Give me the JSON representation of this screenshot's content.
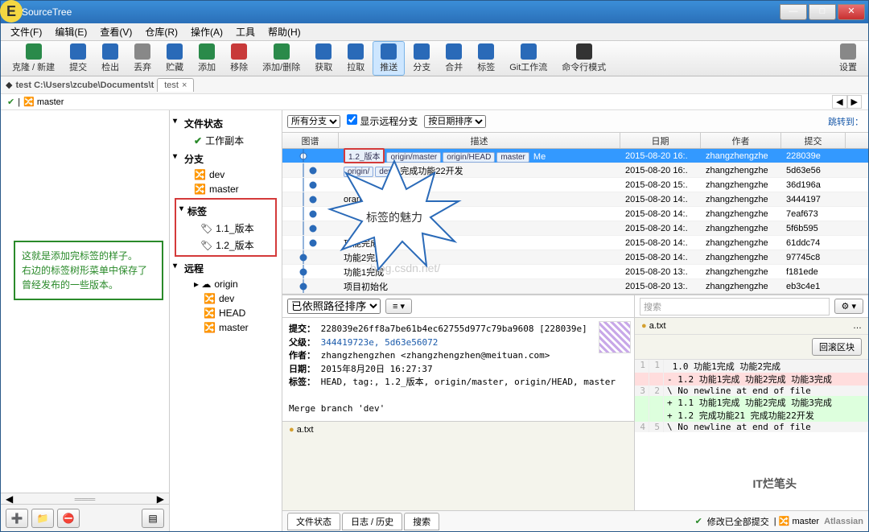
{
  "window": {
    "title": "SourceTree"
  },
  "menus": [
    "文件(F)",
    "编辑(E)",
    "查看(V)",
    "仓库(R)",
    "操作(A)",
    "工具",
    "帮助(H)"
  ],
  "toolbar": [
    {
      "label": "克隆 / 新建",
      "color": "#2a8a4a"
    },
    {
      "label": "提交",
      "color": "#2a6ab8"
    },
    {
      "label": "检出",
      "color": "#2a6ab8"
    },
    {
      "label": "丢弃",
      "color": "#888"
    },
    {
      "label": "贮藏",
      "color": "#2a6ab8"
    },
    {
      "label": "添加",
      "color": "#2a8a4a"
    },
    {
      "label": "移除",
      "color": "#c83a3a"
    },
    {
      "label": "添加/删除",
      "color": "#2a8a4a"
    },
    {
      "label": "获取",
      "color": "#2a6ab8"
    },
    {
      "label": "拉取",
      "color": "#2a6ab8"
    },
    {
      "label": "推送",
      "color": "#2a6ab8",
      "active": true
    },
    {
      "label": "分支",
      "color": "#2a6ab8"
    },
    {
      "label": "合并",
      "color": "#2a6ab8"
    },
    {
      "label": "标签",
      "color": "#2a6ab8"
    },
    {
      "label": "Git工作流",
      "color": "#2a6ab8"
    },
    {
      "label": "命令行模式",
      "color": "#333"
    }
  ],
  "settings_label": "设置",
  "path": "test  C:\\Users\\zcube\\Documents\\t",
  "tab": "test",
  "branch_indicator": "master",
  "annotation": "这就是添加完标签的样子。\n右边的标签树形菜单中保存了曾经发布的一些版本。",
  "burst_text": "标签的魅力",
  "sidebar": {
    "file_status": "文件状态",
    "working_copy": "工作副本",
    "branches": "分支",
    "branch_items": [
      "dev",
      "master"
    ],
    "tags": "标签",
    "tag_items": [
      "1.1_版本",
      "1.2_版本"
    ],
    "remotes": "远程",
    "remote_name": "origin",
    "remote_items": [
      "dev",
      "HEAD",
      "master"
    ]
  },
  "filters": {
    "all_branches": "所有分支",
    "show_remote": "显示远程分支",
    "sort_date": "按日期排序",
    "jump": "跳转到："
  },
  "grid": {
    "cols": [
      "图谱",
      "描述",
      "日期",
      "作者",
      "提交"
    ],
    "widths": [
      70,
      350,
      100,
      100,
      80
    ],
    "rows": [
      {
        "refs": [
          "1.2_版本",
          "origin/master",
          "origin/HEAD",
          "master"
        ],
        "desc": "Me",
        "date": "2015-08-20 16:.",
        "author": "zhangzhengzhe",
        "hash": "228039e",
        "sel": true,
        "tagref": true
      },
      {
        "refs": [
          "origin/",
          "dev"
        ],
        "desc": "完成功能22开发",
        "date": "2015-08-20 16:.",
        "author": "zhangzhengzhe",
        "hash": "5d63e56"
      },
      {
        "refs": [],
        "desc": "",
        "date": "2015-08-20 15:.",
        "author": "zhangzhengzhe",
        "hash": "36d196a"
      },
      {
        "refs": [],
        "desc": "oranch 'dev'",
        "date": "2015-08-20 14:.",
        "author": "zhangzhengzhe",
        "hash": "3444197"
      },
      {
        "refs": [],
        "desc": "",
        "date": "2015-08-20 14:.",
        "author": "zhangzhengzhe",
        "hash": "7eaf673"
      },
      {
        "refs": [],
        "desc": "",
        "date": "2015-08-20 14:.",
        "author": "zhangzhengzhe",
        "hash": "5f6b595"
      },
      {
        "refs": [],
        "desc": "功能完成",
        "date": "2015-08-20 14:.",
        "author": "zhangzhengzhe",
        "hash": "61ddc74"
      },
      {
        "refs": [],
        "desc": "功能2完成",
        "date": "2015-08-20 14:.",
        "author": "zhangzhengzhe",
        "hash": "97745c8"
      },
      {
        "refs": [],
        "desc": "功能1完成",
        "date": "2015-08-20 13:.",
        "author": "zhangzhengzhe",
        "hash": "f181ede"
      },
      {
        "refs": [],
        "desc": "项目初始化",
        "date": "2015-08-20 13:.",
        "author": "zhangzhengzhe",
        "hash": "eb3c4e1"
      }
    ]
  },
  "detail": {
    "sort": "已依照路径排序",
    "commit_l": "提交：",
    "commit_v": "228039e26ff8a7be61b4ec62755d977c79ba9608 [228039e]",
    "parent_l": "父级：",
    "parent_v": "344419723e, 5d63e56072",
    "author_l": "作者：",
    "author_v": "zhangzhengzhen <zhangzhengzhen@meituan.com>",
    "date_l": "日期：",
    "date_v": "2015年8月20日 16:27:37",
    "tags_l": "标签：",
    "tags_v": "HEAD, tag:, 1.2_版本, origin/master, origin/HEAD, master",
    "msg": "Merge branch 'dev'",
    "file": "a.txt",
    "search_ph": "搜索",
    "diff_file": "a.txt",
    "rollback": "回滚区块",
    "diff": [
      {
        "n1": "1",
        "n2": "1",
        "t": " 1.0 功能1完成 功能2完成",
        "c": "ctx"
      },
      {
        "n1": "",
        "n2": "",
        "t": "- 1.2 功能1完成 功能2完成 功能3完成",
        "c": "del"
      },
      {
        "n1": "3",
        "n2": "2",
        "t": "\\ No newline at end of file",
        "c": "ctx"
      },
      {
        "n1": "",
        "n2": "",
        "t": "+ 1.1 功能1完成 功能2完成 功能3完成",
        "c": "add"
      },
      {
        "n1": "",
        "n2": "",
        "t": "+ 1.2 完成功能21 完成功能22开发",
        "c": "add"
      },
      {
        "n1": "4",
        "n2": "5",
        "t": "\\ No newline at end of file",
        "c": "ctx"
      }
    ]
  },
  "bottom": {
    "tabs": [
      "文件状态",
      "日志 / 历史",
      "搜索"
    ],
    "status": "修改已全部提交",
    "branch": "master",
    "brand": "Atlassian"
  },
  "watermark": "blog.csdn.net/",
  "itwm": "IT烂笔头"
}
